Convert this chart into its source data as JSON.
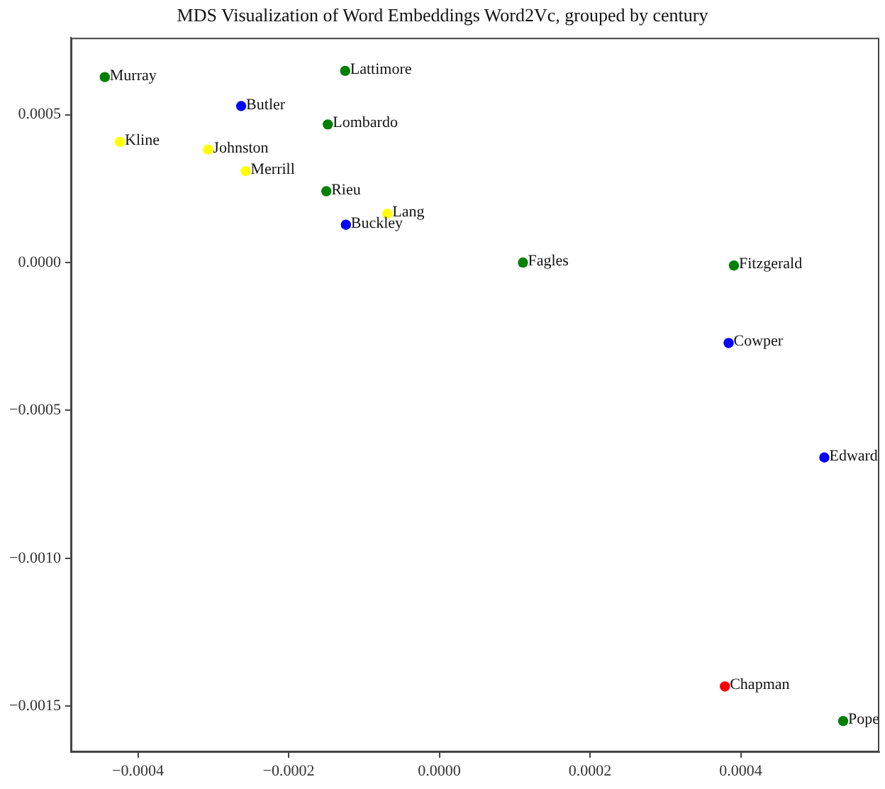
{
  "chart_data": {
    "type": "scatter",
    "title": "MDS Visualization of Word Embeddings Word2Vc, grouped by century",
    "series": [
      {
        "color": "#008000",
        "x": [
          -0.000444,
          -0.000125,
          -0.000148,
          -0.00015,
          0.000111,
          0.000391,
          0.000536
        ],
        "values": [
          0.000627,
          0.000648,
          0.000467,
          0.000241,
          0.0,
          -1e-05,
          -0.00155
        ]
      },
      {
        "color": "#0000ff",
        "x": [
          -0.000263,
          -0.000124,
          0.000384,
          0.000511
        ],
        "values": [
          0.000529,
          0.000128,
          -0.000272,
          -0.000659
        ]
      },
      {
        "color": "#ffff00",
        "x": [
          -0.000424,
          -0.000307,
          -0.000257,
          -6.9e-05
        ],
        "values": [
          0.000408,
          0.000382,
          0.000309,
          0.000165
        ]
      },
      {
        "color": "#ff0000",
        "x": [
          0.000379
        ],
        "values": [
          -0.001433
        ]
      }
    ],
    "annotations": [
      {
        "text": "Murray",
        "x": -0.000444,
        "y": 0.000627
      },
      {
        "text": "Lattimore",
        "x": -0.000125,
        "y": 0.000648
      },
      {
        "text": "Lombardo",
        "x": -0.000148,
        "y": 0.000467
      },
      {
        "text": "Rieu",
        "x": -0.00015,
        "y": 0.000241
      },
      {
        "text": "Fagles",
        "x": 0.000111,
        "y": 0.0
      },
      {
        "text": "Fitzgerald",
        "x": 0.000391,
        "y": -1e-05
      },
      {
        "text": "Pope",
        "x": 0.000536,
        "y": -0.00155
      },
      {
        "text": "Butler",
        "x": -0.000263,
        "y": 0.000529
      },
      {
        "text": "Buckley",
        "x": -0.000124,
        "y": 0.000128
      },
      {
        "text": "Cowper",
        "x": 0.000384,
        "y": -0.000272
      },
      {
        "text": "Edward",
        "x": 0.000511,
        "y": -0.000659
      },
      {
        "text": "Kline",
        "x": -0.000424,
        "y": 0.000408
      },
      {
        "text": "Johnston",
        "x": -0.000307,
        "y": 0.000382
      },
      {
        "text": "Merrill",
        "x": -0.000257,
        "y": 0.000309
      },
      {
        "text": "Lang",
        "x": -6.9e-05,
        "y": 0.000165
      },
      {
        "text": "Chapman",
        "x": 0.000379,
        "y": -0.001433
      }
    ],
    "xlim": [
      -0.000489,
      0.000584
    ],
    "xticks": [
      {
        "value": -0.0004,
        "label": "−0.0004"
      },
      {
        "value": -0.0002,
        "label": "−0.0002"
      },
      {
        "value": 0,
        "label": "0.0000"
      },
      {
        "value": 0.0002,
        "label": "0.0002"
      },
      {
        "value": 0.0004,
        "label": "0.0004"
      }
    ],
    "ylim": [
      -0.001655,
      0.00076
    ],
    "yticks": [
      {
        "value": 0.0005,
        "label": "0.0005"
      },
      {
        "value": 0,
        "label": "0.0000"
      },
      {
        "value": -0.0005,
        "label": "−0.0005"
      },
      {
        "value": -0.001,
        "label": "−0.0010"
      },
      {
        "value": -0.0015,
        "label": "−0.0015"
      }
    ],
    "grid": false,
    "legend": false,
    "marker": "circle"
  }
}
